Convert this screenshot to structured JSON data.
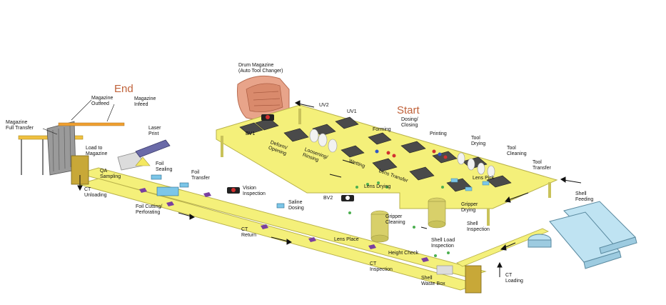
{
  "titles": {
    "end": "End",
    "start": "Start"
  },
  "labels": {
    "drum_magazine": "Drum Magazine\n(Auto Tool Changer)",
    "magazine_outfeed": "Magazine\nOutfeed",
    "magazine_infeed": "Magazine\nInfeed",
    "magazine_full_transfer": "Magazine\nFull Transfer",
    "laser_print": "Laser\nPrint",
    "load_to_magazine": "Load to\nMagazine",
    "qa_sampling": "QA\nSampling",
    "ct_unloading": "CT\nUnloading",
    "foil_sealing": "Foil\nSealing",
    "foil_transfer": "Foil\nTransfer",
    "foil_cutting": "Foil Cutting/\nPerforating",
    "vision_inspection": "Vision\nInspection",
    "saline_dosing": "Saline\nDosing",
    "bv2": "BV2",
    "ct_return": "CT\nReturn",
    "lens_place": "Lens Place",
    "height_check": "Height Check",
    "ct_inspection": "CT\nInspection",
    "shell_waste_box": "Shell\nWaste Box",
    "ct_loading": "CT\nLoading",
    "uv2": "UV2",
    "uv1": "UV1",
    "bv1": "BV1",
    "forming": "Forming",
    "dosing_closing": "Dosing/\nClosing",
    "printing": "Printing",
    "tool_drying": "Tool\nDrying",
    "tool_cleaning": "Tool\nCleaning",
    "tool_transfer": "Tool\nTransfer",
    "deform_opening": "Deform/\nOpening",
    "loosening_rinsing": "Loosening/\nRinsing",
    "wetting": "Wetting",
    "lens_transfer": "Lens Transfer",
    "lens_drying": "Lens Drying",
    "lens_pick": "Lens Pick",
    "gripper_drying": "Gripper\nDrying",
    "gripper_cleaning": "Gripper\nCleaning",
    "shell_inspection": "Shell\nInspection",
    "shell_load_inspection": "Shell Load\nInspection",
    "shell_feeding": "Shell\nFeeding"
  },
  "colors": {
    "conveyor_yellow": "#f4f07a",
    "conveyor_edge": "#b9b24a",
    "drum_salmon": "#e8a48a",
    "title_orange": "#c0623a",
    "hopper_blue": "#bfe3f2",
    "magazine_gray": "#9a9a9a",
    "laser_purple": "#6a6aa8",
    "marker_purple": "#7a3fa0"
  }
}
